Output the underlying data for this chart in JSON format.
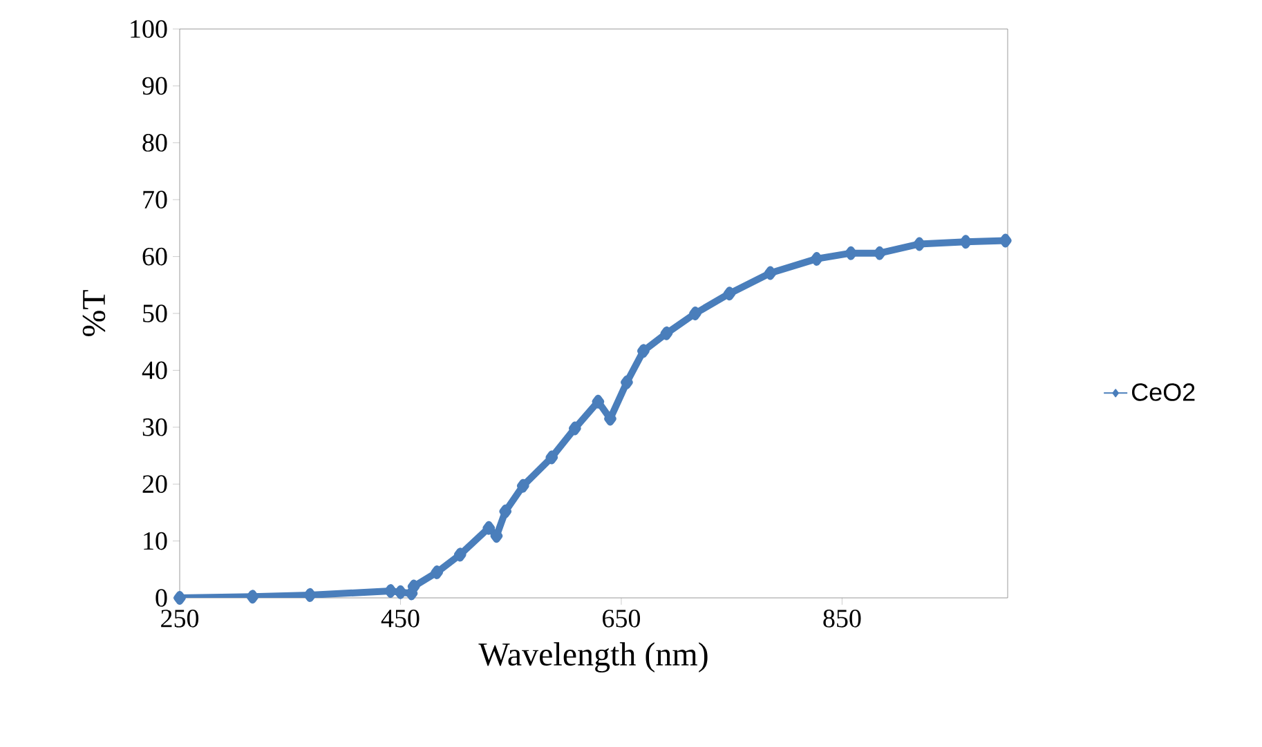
{
  "chart_data": {
    "type": "line",
    "xlabel": "Wavelength (nm)",
    "ylabel": "%T",
    "xlim": [
      250,
      1000
    ],
    "ylim": [
      0,
      100
    ],
    "xticks": [
      250,
      450,
      650,
      850
    ],
    "yticks": [
      0,
      10,
      20,
      30,
      40,
      50,
      60,
      70,
      80,
      90,
      100
    ],
    "grid": false,
    "legend": "right",
    "marker": "diamond",
    "line_style": "solid",
    "series": [
      {
        "name": "CeO2",
        "color": "#4a7ebb",
        "x": [
          250,
          316,
          368,
          441,
          450,
          460,
          462,
          483,
          504,
          530,
          537,
          545,
          561,
          587,
          608,
          629,
          640,
          655,
          670,
          691,
          717,
          748,
          785,
          827,
          858,
          884,
          920,
          962,
          998
        ],
        "values": [
          0,
          0.2,
          0.5,
          1.2,
          1.0,
          0.8,
          2.0,
          4.5,
          7.6,
          12.3,
          10.9,
          15.2,
          19.7,
          24.7,
          29.8,
          34.5,
          31.5,
          37.9,
          43.4,
          46.5,
          50,
          53.5,
          57.1,
          59.6,
          60.6,
          60.6,
          62.2,
          62.6,
          62.8
        ]
      }
    ]
  }
}
